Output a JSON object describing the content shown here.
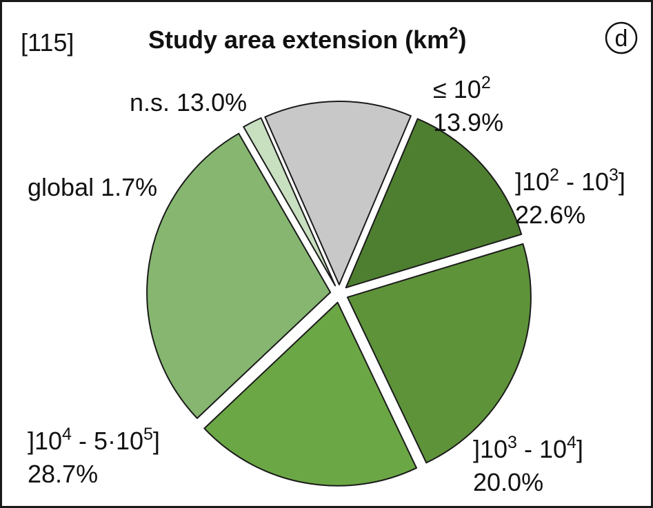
{
  "figure": {
    "reference": "[115]",
    "panel_letter": "d",
    "title_main": "Study area extension (km",
    "title_sup": "2",
    "title_close": ")"
  },
  "chart_data": {
    "type": "pie",
    "title": "Study area extension (km2)",
    "start_angle_deg": 23,
    "direction": "clockwise",
    "slices": [
      {
        "key": "le_1e2",
        "category": "≤ 10^2",
        "value": 13.9,
        "color": "#4e7f30",
        "label": {
          "lines": [
            [
              {
                "t": "≤ 10"
              },
              {
                "t": "2",
                "sup": true
              }
            ],
            [
              {
                "t": "13.9%"
              }
            ]
          ]
        }
      },
      {
        "key": "1e2_1e3",
        "category": "]10^2 - 10^3]",
        "value": 22.6,
        "color": "#5e933a",
        "label": {
          "lines": [
            [
              {
                "t": "]10"
              },
              {
                "t": "2",
                "sup": true
              },
              {
                "t": " - 10"
              },
              {
                "t": "3",
                "sup": true
              },
              {
                "t": "]"
              }
            ],
            [
              {
                "t": "22.6%"
              }
            ]
          ]
        }
      },
      {
        "key": "1e3_1e4",
        "category": "]10^3 - 10^4]",
        "value": 20.0,
        "color": "#6ca745",
        "label": {
          "lines": [
            [
              {
                "t": "]10"
              },
              {
                "t": "3",
                "sup": true
              },
              {
                "t": " - 10"
              },
              {
                "t": "4",
                "sup": true
              },
              {
                "t": "]"
              }
            ],
            [
              {
                "t": "20.0%"
              }
            ]
          ]
        }
      },
      {
        "key": "1e4_5e5",
        "category": "]10^4 - 5·10^5]",
        "value": 28.7,
        "color": "#86b670",
        "label": {
          "lines": [
            [
              {
                "t": "]10"
              },
              {
                "t": "4",
                "sup": true
              },
              {
                "t": " - 5·10"
              },
              {
                "t": "5",
                "sup": true
              },
              {
                "t": "]"
              }
            ],
            [
              {
                "t": "28.7%"
              }
            ]
          ]
        }
      },
      {
        "key": "global",
        "category": "global",
        "value": 1.7,
        "color": "#c8dfc0",
        "label": {
          "lines": [
            [
              {
                "t": "global 1.7%"
              }
            ]
          ]
        }
      },
      {
        "key": "ns",
        "category": "n.s.",
        "value": 13.0,
        "color": "#c8c8c8",
        "label": {
          "lines": [
            [
              {
                "t": "n.s. 13.0%"
              }
            ]
          ]
        }
      }
    ]
  }
}
